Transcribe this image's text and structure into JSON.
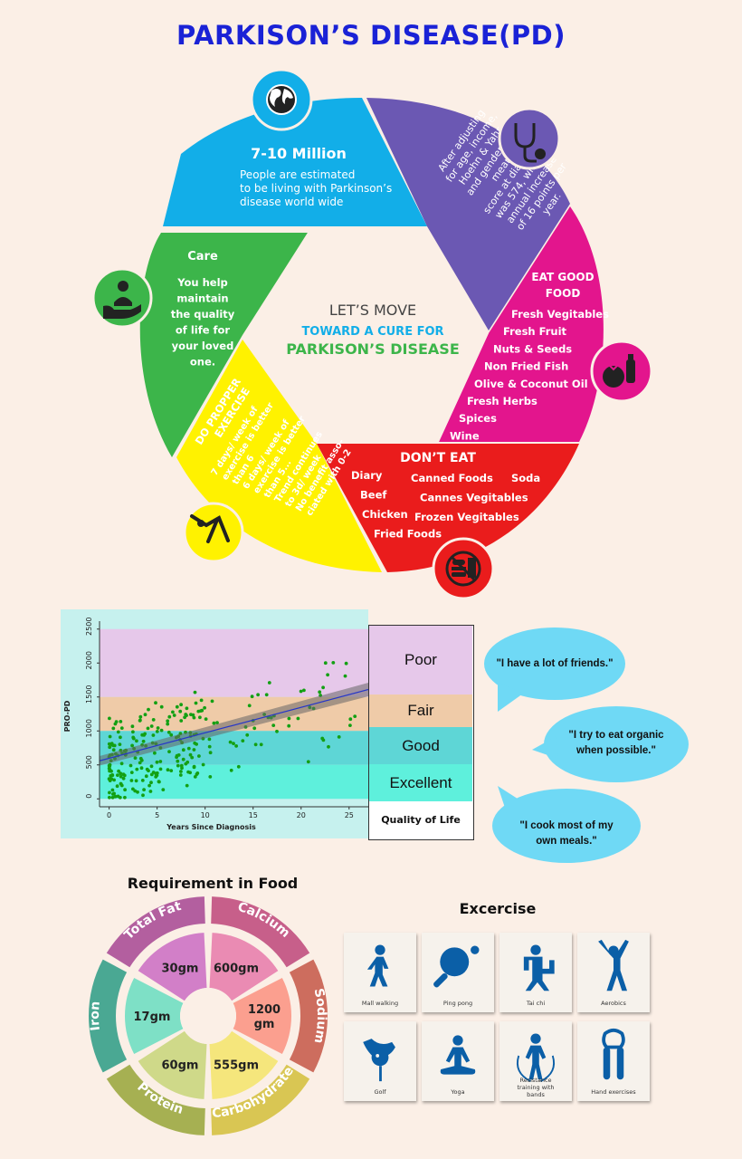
{
  "title": "PARKISON’S DISEASE(PD)",
  "wheel": {
    "center": {
      "line1": "LET’S MOVE",
      "line2": "TOWARD A CURE FOR",
      "line3": "PARKISON’S DISEASE"
    },
    "million": {
      "heading": "7-10 Million",
      "l1": "People are estimated",
      "l2": "to be living with Parkinson’s",
      "l3": "disease world wide",
      "color": "#12aee8"
    },
    "score": {
      "lines": [
        "After adjusting",
        "for age, income,",
        "Hoehn & Yahr,",
        "and gender, the",
        "mean",
        "score at diagnosis",
        "was 574, with an",
        "annual increase",
        "of 16 points per",
        "year."
      ],
      "color": "#6b58b3"
    },
    "eat": {
      "heading1": "EAT GOOD",
      "heading2": "FOOD",
      "items": [
        "Fresh Vegitables",
        "Fresh Fruit",
        "Nuts & Seeds",
        "Non Fried Fish",
        "Olive & Coconut Oil",
        "Fresh Herbs",
        "Spices",
        "Wine"
      ],
      "color": "#e3158d"
    },
    "donteat": {
      "heading": "DON’T EAT",
      "col1": [
        "Diary",
        "Beef",
        "Chicken",
        "Fried Foods"
      ],
      "col2": [
        "Canned Foods",
        "Cannes Vegitables",
        "Frozen Vegitables"
      ],
      "col3": [
        "Soda"
      ],
      "color": "#ea1c1c"
    },
    "exercise": {
      "heading1": "DO PROPPER",
      "heading2": "EXERCISE",
      "lines": [
        "7 days/ week of",
        "exercise is better",
        "than 6",
        "6 days/ week of",
        "exercise is better",
        "than 5...",
        "Trend continues",
        "to 3d/ week",
        "No benefit asso-",
        "ciated with 0-2"
      ],
      "color": "#fff200"
    },
    "care": {
      "heading": "Care",
      "lines": [
        "You help",
        "maintain",
        "the quality",
        "of life for",
        "your loved",
        "one."
      ],
      "color": "#3cb54a"
    },
    "icons": [
      "globe-icon",
      "stethoscope-icon",
      "food-bottle-icon",
      "no-fastfood-icon",
      "yoga-pose-icon",
      "care-hands-icon"
    ]
  },
  "chart_data": {
    "type": "scatter",
    "xlabel": "Years Since Diagnosis",
    "ylabel": "PRO-PD",
    "xlim": [
      -1,
      27
    ],
    "ylim": [
      -50,
      2550
    ],
    "xticks": [
      "0",
      "5",
      "10",
      "15",
      "20",
      "25"
    ],
    "yticks": [
      "0",
      "500",
      "1000",
      "1500",
      "2000",
      "2500"
    ],
    "trend": {
      "x": [
        -1,
        27
      ],
      "y": [
        560,
        1610
      ]
    },
    "bands": [
      {
        "label": "Poor",
        "from": 1500,
        "to": 2500,
        "color": "#e6c8ea"
      },
      {
        "label": "Fair",
        "from": 1000,
        "to": 1500,
        "color": "#efcba8"
      },
      {
        "label": "Good",
        "from": 500,
        "to": 1000,
        "color": "#5ed6d6"
      },
      {
        "label": "Excellent",
        "from": 0,
        "to": 500,
        "color": "#5ef0dc"
      }
    ],
    "legend_title": "Quality of Life",
    "point_color": "#13a013"
  },
  "quotes": [
    {
      "line1": "\"I have a lot of friends.\"",
      "line2": ""
    },
    {
      "line1": "\"I try to eat organic",
      "line2": "when possible.\""
    },
    {
      "line1": "\"I cook most of my",
      "line2": "own meals.\""
    }
  ],
  "food": {
    "title": "Requirement in Food",
    "segments": [
      {
        "name": "Total Fat",
        "value": "30gm",
        "outer": "#b35f9f",
        "inner": "#d27fc8"
      },
      {
        "name": "Calcium",
        "value": "600gm",
        "outer": "#c75f8a",
        "inner": "#ea8bb3"
      },
      {
        "name": "Sodium",
        "value": "1200 gm",
        "outer": "#cd6d5e",
        "inner": "#fb9f8f"
      },
      {
        "name": "Carbohydrate",
        "value": "555gm",
        "outer": "#d9c653",
        "inner": "#f5e67c"
      },
      {
        "name": "Protein",
        "value": "60gm",
        "outer": "#a6b052",
        "inner": "#cfd989"
      },
      {
        "name": "Iron",
        "value": "17gm",
        "outer": "#4aa893",
        "inner": "#7ee0c6"
      }
    ]
  },
  "exercise_section": {
    "title": "Excercise",
    "items": [
      "Mall walking",
      "Ping pong",
      "Tai chi",
      "Aerobics",
      "Golf",
      "Yoga",
      "Resistance training with bands",
      "Hand exercises"
    ],
    "icon_color": "#0b5fa7"
  }
}
